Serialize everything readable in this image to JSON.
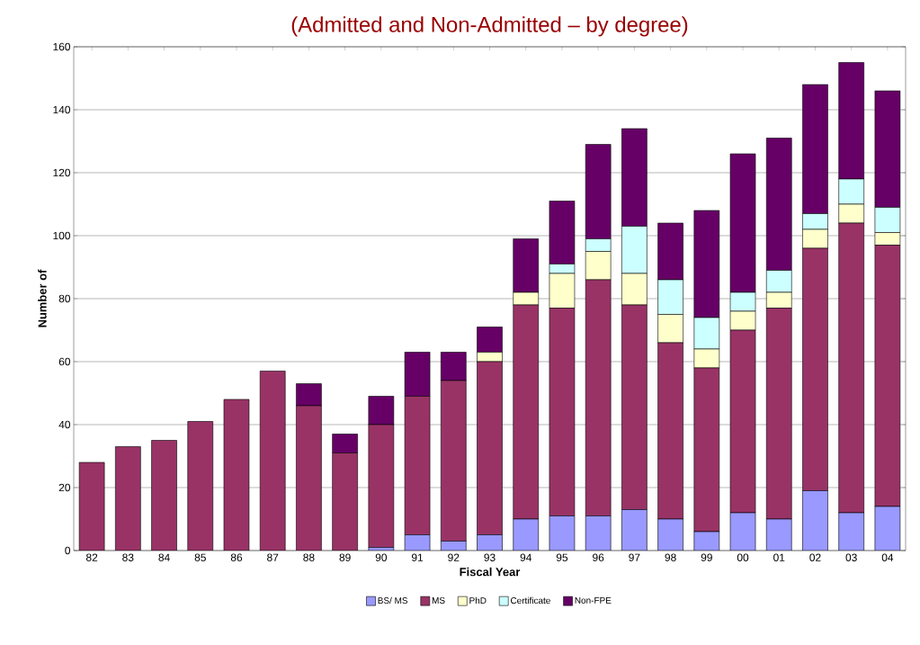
{
  "chart_data": {
    "type": "bar",
    "stacked": true,
    "title": "(Admitted and Non-Admitted – by degree)",
    "xlabel": "Fiscal Year",
    "ylabel": "Number of",
    "categories": [
      "82",
      "83",
      "84",
      "85",
      "86",
      "87",
      "88",
      "89",
      "90",
      "91",
      "92",
      "93",
      "94",
      "95",
      "96",
      "97",
      "98",
      "99",
      "00",
      "01",
      "02",
      "03",
      "04"
    ],
    "series": [
      {
        "name": "BS/ MS",
        "color": "#9999ff",
        "values": [
          0,
          0,
          0,
          0,
          0,
          0,
          0,
          0,
          1,
          5,
          3,
          5,
          10,
          11,
          11,
          13,
          10,
          6,
          12,
          10,
          19,
          12,
          14
        ]
      },
      {
        "name": "MS",
        "color": "#993366",
        "values": [
          28,
          33,
          35,
          41,
          48,
          57,
          46,
          31,
          39,
          44,
          51,
          55,
          68,
          66,
          75,
          65,
          56,
          52,
          58,
          67,
          77,
          92,
          83
        ]
      },
      {
        "name": "PhD",
        "color": "#ffffcc",
        "values": [
          0,
          0,
          0,
          0,
          0,
          0,
          0,
          0,
          0,
          0,
          0,
          3,
          4,
          11,
          9,
          10,
          9,
          6,
          6,
          5,
          6,
          6,
          4
        ]
      },
      {
        "name": "Certificate",
        "color": "#ccffff",
        "values": [
          0,
          0,
          0,
          0,
          0,
          0,
          0,
          0,
          0,
          0,
          0,
          0,
          0,
          3,
          4,
          15,
          11,
          10,
          6,
          7,
          5,
          8,
          8
        ]
      },
      {
        "name": "Non-FPE",
        "color": "#660066",
        "values": [
          0,
          0,
          0,
          0,
          0,
          0,
          7,
          6,
          9,
          14,
          9,
          8,
          17,
          20,
          30,
          31,
          18,
          34,
          44,
          42,
          41,
          37,
          37
        ]
      }
    ],
    "ylim": [
      0,
      160
    ],
    "yticks": [
      0,
      20,
      40,
      60,
      80,
      100,
      120,
      140,
      160
    ],
    "grid": "y",
    "legend": "bottom"
  }
}
